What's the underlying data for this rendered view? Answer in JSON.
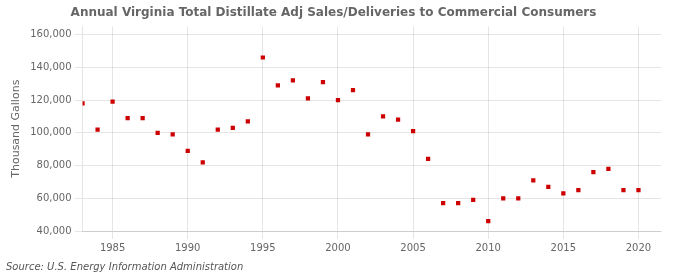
{
  "chart_data": {
    "type": "scatter",
    "title": "Annual Virginia Total Distillate Adj Sales/Deliveries to Commercial Consumers",
    "ylabel": "Thousand Gallons",
    "annotations": [
      "Source: U.S. Energy Information Administration"
    ],
    "x": [
      1983,
      1984,
      1985,
      1986,
      1987,
      1988,
      1989,
      1990,
      1991,
      1992,
      1993,
      1994,
      1995,
      1996,
      1997,
      1998,
      1999,
      2000,
      2001,
      2002,
      2003,
      2004,
      2005,
      2006,
      2007,
      2008,
      2009,
      2010,
      2011,
      2012,
      2013,
      2014,
      2015,
      2016,
      2017,
      2018,
      2019,
      2020
    ],
    "values": [
      118000,
      102000,
      119000,
      109000,
      109000,
      100000,
      99000,
      89000,
      82000,
      102000,
      103000,
      107000,
      146000,
      129000,
      132000,
      121000,
      131000,
      120000,
      126000,
      99000,
      110000,
      108000,
      101000,
      84000,
      57000,
      57000,
      59000,
      46000,
      60000,
      60000,
      71000,
      67000,
      63000,
      65000,
      76000,
      78000,
      65000,
      65000
    ],
    "color": "#cc0000",
    "marker": "square",
    "xlim": [
      1983,
      2021.5
    ],
    "xticks": [
      1985,
      1990,
      1995,
      2000,
      2005,
      2010,
      2015,
      2020
    ],
    "ylim": [
      40000,
      165000
    ],
    "yticks": [
      {
        "value": 40000,
        "label": "40,000"
      },
      {
        "value": 60000,
        "label": "60,000"
      },
      {
        "value": 80000,
        "label": "80,000"
      },
      {
        "value": 100000,
        "label": "100,000"
      },
      {
        "value": 120000,
        "label": "120,000"
      },
      {
        "value": 140000,
        "label": "140,000"
      },
      {
        "value": 160000,
        "label": "160,000"
      }
    ],
    "grid": true
  }
}
